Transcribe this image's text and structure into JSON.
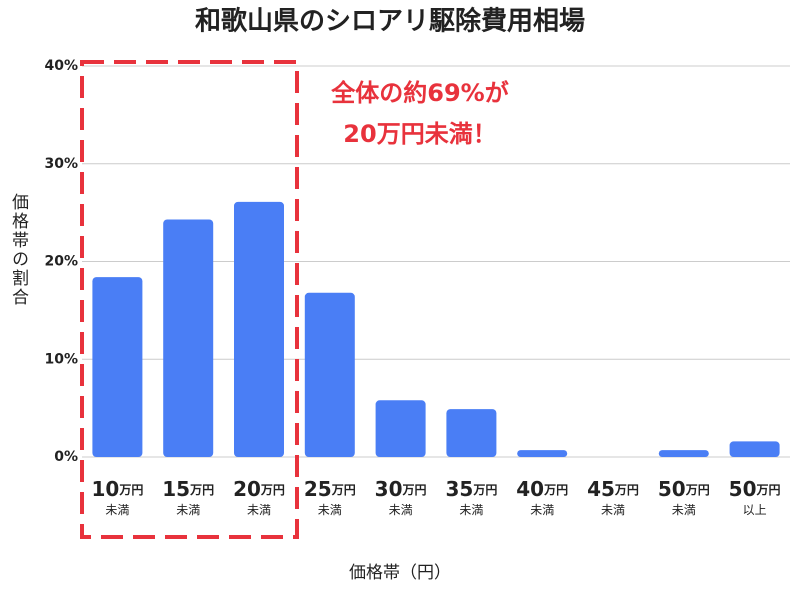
{
  "chart_data": {
    "type": "bar",
    "title": "和歌山県のシロアリ駆除費用相場",
    "categories": [
      "10万円未満",
      "15万円未満",
      "20万円未満",
      "25万円未満",
      "30万円未満",
      "35万円未満",
      "40万円未満",
      "45万円未満",
      "50万円未満",
      "50万円以上"
    ],
    "values": [
      18.4,
      24.3,
      26.1,
      16.8,
      5.8,
      4.9,
      0.7,
      0,
      0.7,
      1.6
    ],
    "color": "#4a7ef5",
    "ylim": [
      0,
      40
    ],
    "yticks": [
      {
        "value": 0,
        "label": "0%"
      },
      {
        "value": 10,
        "label": "10%"
      },
      {
        "value": 20,
        "label": "20%"
      },
      {
        "value": 30,
        "label": "30%"
      },
      {
        "value": 40,
        "label": "40%"
      }
    ],
    "grid": true,
    "x_label": "価格帯（円）",
    "y_label": "価格帯の割合",
    "annotation": [
      "全体の約69%が",
      "20万円未満！"
    ]
  }
}
